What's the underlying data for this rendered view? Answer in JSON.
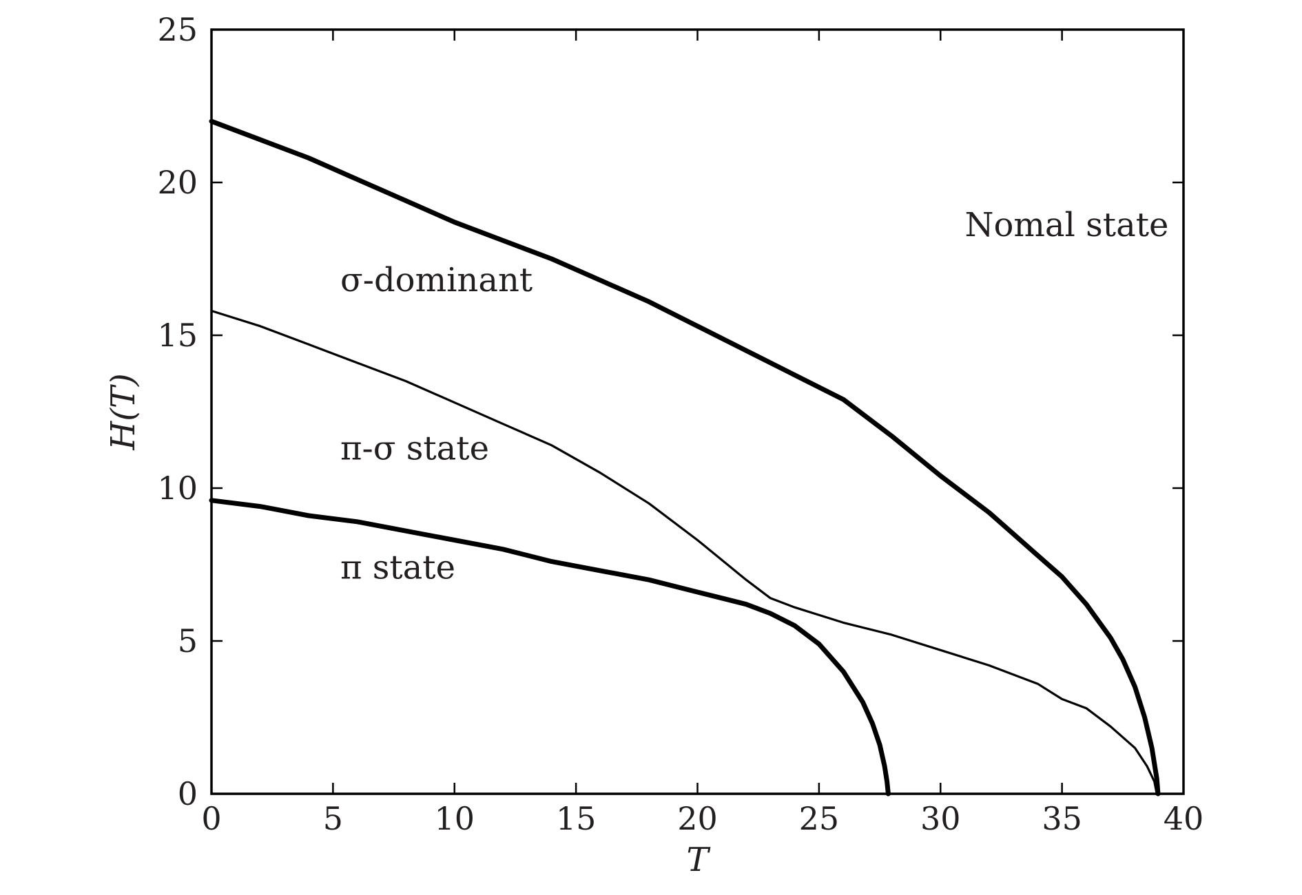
{
  "chart_data": {
    "type": "line",
    "xlabel": "T",
    "ylabel": "H(T)",
    "xlim": [
      0,
      40
    ],
    "ylim": [
      0,
      25
    ],
    "xticks": [
      0,
      5,
      10,
      15,
      20,
      25,
      30,
      35,
      40
    ],
    "yticks": [
      0,
      5,
      10,
      15,
      20,
      25
    ],
    "grid": false,
    "colors": {
      "line": "#000000",
      "text": "#231f20",
      "frame": "#000000"
    },
    "annotations": [
      {
        "text": "Nomal state",
        "x": 31.0,
        "y": 18.6
      },
      {
        "text": "σ-dominant",
        "x": 5.3,
        "y": 16.8
      },
      {
        "text": "π-σ state",
        "x": 5.3,
        "y": 11.3
      },
      {
        "text": "π state",
        "x": 5.3,
        "y": 7.4
      }
    ],
    "series": [
      {
        "style": "thick",
        "x": [
          0,
          2,
          4,
          6,
          8,
          10,
          12,
          14,
          16,
          18,
          20,
          22,
          24,
          26,
          28,
          30,
          32,
          33,
          34,
          35,
          36,
          37,
          37.5,
          38,
          38.4,
          38.7,
          38.9,
          38.95
        ],
        "y": [
          22.0,
          21.4,
          20.8,
          20.1,
          19.4,
          18.7,
          18.1,
          17.5,
          16.8,
          16.1,
          15.3,
          14.5,
          13.7,
          12.9,
          11.7,
          10.4,
          9.2,
          8.5,
          7.8,
          7.1,
          6.2,
          5.1,
          4.4,
          3.5,
          2.5,
          1.5,
          0.5,
          0
        ]
      },
      {
        "style": "thin",
        "x": [
          0,
          2,
          4,
          6,
          8,
          10,
          12,
          14,
          16,
          18,
          20,
          22,
          23,
          24,
          26,
          28,
          30,
          32,
          34,
          35,
          36,
          37,
          38,
          38.5,
          38.8,
          38.9
        ],
        "y": [
          15.8,
          15.3,
          14.7,
          14.1,
          13.5,
          12.8,
          12.1,
          11.4,
          10.5,
          9.5,
          8.3,
          7.0,
          6.4,
          6.1,
          5.6,
          5.2,
          4.7,
          4.2,
          3.6,
          3.1,
          2.8,
          2.2,
          1.5,
          0.9,
          0.4,
          0
        ]
      },
      {
        "style": "thick",
        "x": [
          0,
          2,
          4,
          6,
          8,
          10,
          12,
          14,
          16,
          18,
          20,
          21,
          22,
          23,
          24,
          25,
          26,
          26.8,
          27.2,
          27.5,
          27.7,
          27.8,
          27.85
        ],
        "y": [
          9.6,
          9.4,
          9.1,
          8.9,
          8.6,
          8.3,
          8.0,
          7.6,
          7.3,
          7.0,
          6.6,
          6.4,
          6.2,
          5.9,
          5.5,
          4.9,
          4.0,
          3.0,
          2.3,
          1.6,
          0.9,
          0.4,
          0
        ]
      }
    ]
  }
}
